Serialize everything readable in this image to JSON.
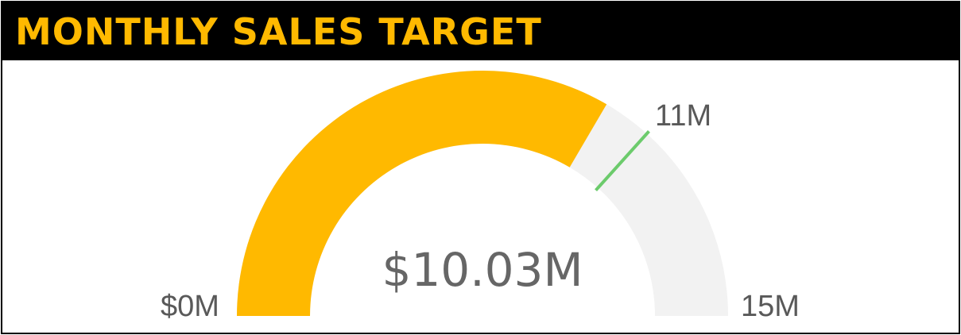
{
  "header": {
    "title": "MONTHLY SALES TARGET"
  },
  "chart_data": {
    "type": "gauge",
    "value": 10.03,
    "target": 11,
    "min": 0,
    "max": 15,
    "value_label": "$10.03M",
    "min_label": "$0M",
    "max_label": "15M",
    "target_label": "11M",
    "colors": {
      "fill": "#FFB900",
      "track": "#F2F2F2",
      "target": "#6CCB6C",
      "header_bg": "#000000",
      "title": "#FFB900"
    }
  }
}
